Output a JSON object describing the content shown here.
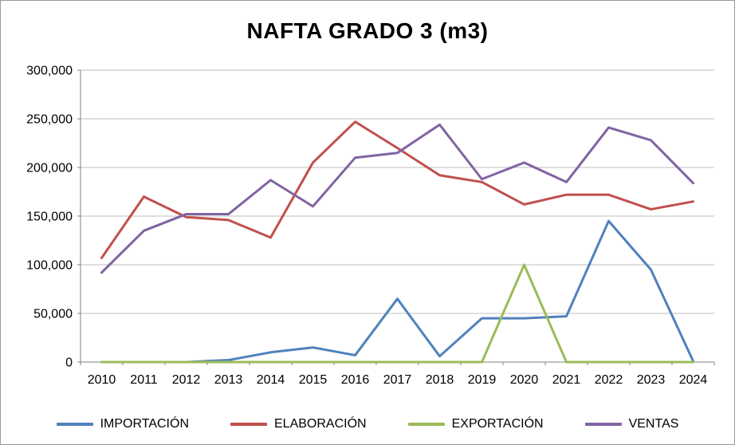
{
  "chart_data": {
    "type": "line",
    "title": "NAFTA GRADO 3 (m3)",
    "xlabel": "",
    "ylabel": "",
    "ylim": [
      0,
      300000
    ],
    "ytick_values": [
      0,
      50000,
      100000,
      150000,
      200000,
      250000,
      300000
    ],
    "ytick_labels": [
      "0",
      "50,000",
      "100,000",
      "150,000",
      "200,000",
      "250,000",
      "300,000"
    ],
    "grid": true,
    "legend_position": "bottom",
    "categories": [
      "2010",
      "2011",
      "2012",
      "2013",
      "2014",
      "2015",
      "2016",
      "2017",
      "2018",
      "2019",
      "2020",
      "2021",
      "2022",
      "2023",
      "2024"
    ],
    "series": [
      {
        "name": "IMPORTACIÓN",
        "color": "#4F81BD",
        "values": [
          0,
          0,
          0,
          2000,
          10000,
          15000,
          7000,
          65000,
          6000,
          45000,
          45000,
          47000,
          145000,
          95000,
          1000
        ]
      },
      {
        "name": "ELABORACIÓN",
        "color": "#C0504D",
        "values": [
          107000,
          170000,
          149000,
          146000,
          128000,
          205000,
          247000,
          220000,
          192000,
          185000,
          162000,
          172000,
          172000,
          157000,
          165000
        ]
      },
      {
        "name": "EXPORTACIÓN",
        "color": "#9BBB59",
        "values": [
          0,
          0,
          0,
          0,
          0,
          0,
          0,
          0,
          0,
          0,
          100000,
          0,
          0,
          0,
          0
        ]
      },
      {
        "name": "VENTAS",
        "color": "#8064A2",
        "values": [
          92000,
          135000,
          152000,
          152000,
          187000,
          160000,
          210000,
          215000,
          244000,
          188000,
          205000,
          185000,
          241000,
          228000,
          184000
        ]
      }
    ],
    "colors": {
      "gridline": "#BFBFBF",
      "axis": "#808080",
      "border": "#9A9A9A"
    }
  }
}
